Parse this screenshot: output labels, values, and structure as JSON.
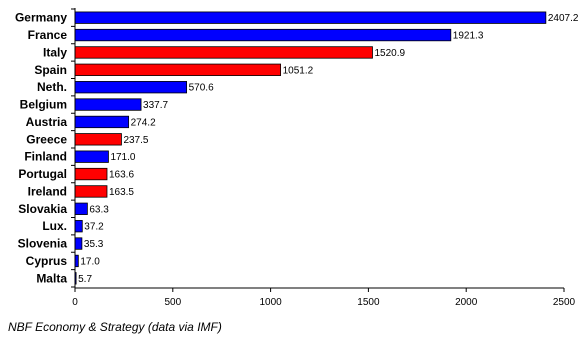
{
  "chart_data": {
    "type": "bar",
    "orientation": "horizontal",
    "categories": [
      "Germany",
      "France",
      "Italy",
      "Spain",
      "Neth.",
      "Belgium",
      "Austria",
      "Greece",
      "Finland",
      "Portugal",
      "Ireland",
      "Slovakia",
      "Lux.",
      "Slovenia",
      "Cyprus",
      "Malta"
    ],
    "values": [
      2407.2,
      1921.3,
      1520.9,
      1051.2,
      570.6,
      337.7,
      274.2,
      237.5,
      171.0,
      163.6,
      163.5,
      63.3,
      37.2,
      35.3,
      17.0,
      5.7
    ],
    "value_labels": [
      "2407.2",
      "1921.3",
      "1520.9",
      "1051.2",
      "570.6",
      "337.7",
      "274.2",
      "237.5",
      "171.0",
      "163.6",
      "163.5",
      "63.3",
      "37.2",
      "35.3",
      "17.0",
      "5.7"
    ],
    "bar_colors": [
      "#0000ff",
      "#0000ff",
      "#ff0000",
      "#ff0000",
      "#0000ff",
      "#0000ff",
      "#0000ff",
      "#ff0000",
      "#0000ff",
      "#ff0000",
      "#ff0000",
      "#0000ff",
      "#0000ff",
      "#0000ff",
      "#0000ff",
      "#0000ff"
    ],
    "xlim": [
      0,
      2500
    ],
    "xticks": [
      0,
      500,
      1000,
      1500,
      2000,
      2500
    ],
    "xlabel": "",
    "ylabel": "",
    "title": "",
    "grid": false,
    "legend": "none"
  },
  "source": "NBF Economy & Strategy (data via IMF)"
}
